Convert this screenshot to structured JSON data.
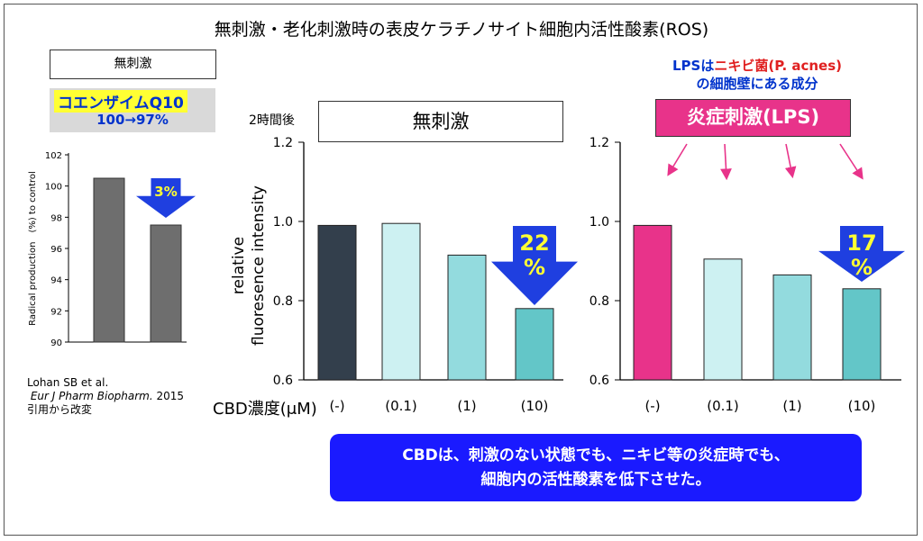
{
  "title": "無刺激・老化刺激時の表皮ケラチノサイト細胞内活性酸素(ROS)",
  "left_panel": {
    "condition_label": "無刺激",
    "product_name": "コエンザイムQ10",
    "product_change": "100→97%",
    "reference": {
      "authors": "Lohan SB et al.",
      "journal": "Eur J Pharm Biopharm.",
      "year": "2015",
      "note": "引用から改変"
    }
  },
  "middle_panel": {
    "time_label": "2時間後",
    "condition_label": "無刺激"
  },
  "right_panel": {
    "note_line1_prefix": "LPSは",
    "note_line1_highlight": "ニキビ菌(P. acnes)",
    "note_line2": "の細胞壁にある成分",
    "condition_label": "炎症刺激(LPS)"
  },
  "x_axis_label": "CBD濃度(μM)",
  "summary_line1": "CBDは、刺激のない状態でも、ニキビ等の炎症時でも、",
  "summary_line2": "細胞内の活性酸素を低下させた。",
  "colors": {
    "arrow_blue": "#1f3fe0",
    "arrow_text_yellow": "#ffff33",
    "lps_pink": "#e8338a"
  },
  "chart_data": [
    {
      "id": "coq10",
      "type": "bar",
      "categories": [
        "",
        ""
      ],
      "values": [
        100.5,
        97.5
      ],
      "ylabel": "Radical production　(%)  to control",
      "ylim": [
        90,
        102
      ],
      "yticks": [
        90,
        92,
        94,
        96,
        98,
        100,
        102
      ],
      "colors": [
        "#6e6e6e",
        "#6e6e6e"
      ],
      "annotation": "3%"
    },
    {
      "id": "cbd-unstimulated",
      "type": "bar",
      "categories": [
        "(-)",
        "(0.1)",
        "(1)",
        "(10)"
      ],
      "values": [
        0.99,
        0.995,
        0.915,
        0.78
      ],
      "ylabel": "relative\nfluoresence intensity",
      "ylim": [
        0.6,
        1.2
      ],
      "yticks": [
        "0.6",
        "0.8",
        "1.0",
        "1.2"
      ],
      "colors": [
        "#333f4c",
        "#cdf1f2",
        "#93dbde",
        "#63c6c8"
      ],
      "annotation": "22\n%"
    },
    {
      "id": "cbd-lps",
      "type": "bar",
      "categories": [
        "(-)",
        "(0.1)",
        "(1)",
        "(10)"
      ],
      "values": [
        0.99,
        0.905,
        0.865,
        0.83
      ],
      "ylim": [
        0.6,
        1.2
      ],
      "yticks": [
        "0.6",
        "0.8",
        "1.0",
        "1.2"
      ],
      "colors": [
        "#e8338a",
        "#cdf1f2",
        "#93dbde",
        "#63c6c8"
      ],
      "annotation": "17\n%"
    }
  ]
}
